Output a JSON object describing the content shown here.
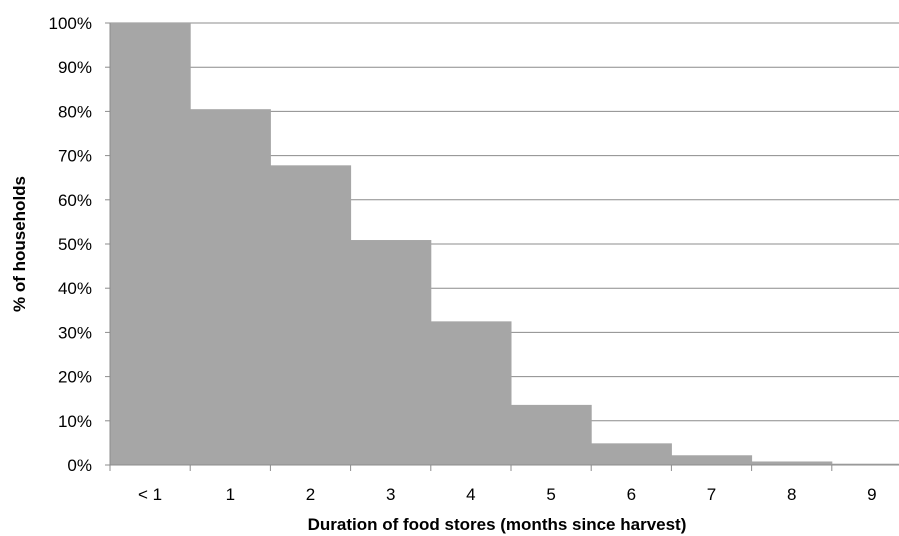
{
  "chart_data": {
    "type": "bar",
    "categories": [
      "< 1",
      "1",
      "2",
      "3",
      "4",
      "5",
      "6",
      "7",
      "8",
      "9"
    ],
    "values": [
      100,
      80.5,
      67.8,
      50.9,
      32.5,
      13.6,
      4.9,
      2.2,
      0.8,
      0.3
    ],
    "xlabel": "Duration of food stores (months since harvest)",
    "ylabel": "% of households",
    "ylim": [
      0,
      100
    ],
    "yticks": [
      "0%",
      "10%",
      "20%",
      "30%",
      "40%",
      "50%",
      "60%",
      "70%",
      "80%",
      "90%",
      "100%"
    ],
    "grid": true,
    "bar_color": "#a6a6a6",
    "grid_color": "#8c8c8c"
  }
}
